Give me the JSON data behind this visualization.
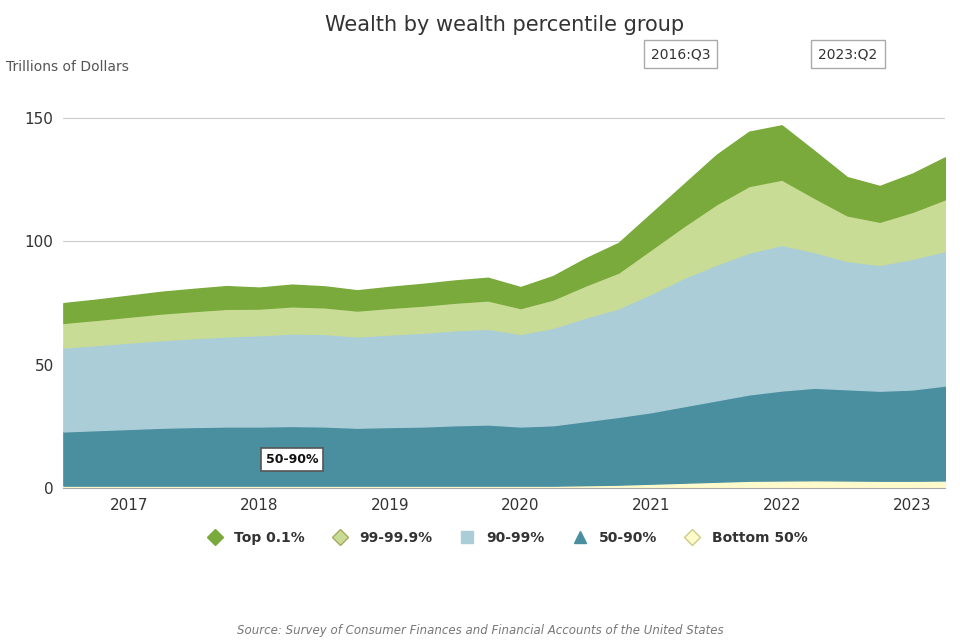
{
  "title": "Wealth by wealth percentile group",
  "ylabel": "Trillions of Dollars",
  "source": "Source: Survey of Consumer Finances and Financial Accounts of the United States",
  "annotation_box1": "2016:Q3",
  "annotation_box2": "2023:Q2",
  "label_annotation": "50-90%",
  "ylim": [
    0,
    160
  ],
  "yticks": [
    0,
    50,
    100,
    150
  ],
  "colors": {
    "top01": "#7aaa3c",
    "p9999": "#c8dc96",
    "p9099": "#aacdd8",
    "p5090": "#4a8fa0",
    "bot50": "#fffacc"
  },
  "x_numeric": [
    0,
    0.25,
    0.5,
    0.75,
    1.0,
    1.25,
    1.5,
    1.75,
    2.0,
    2.25,
    2.5,
    2.75,
    3.0,
    3.25,
    3.5,
    3.75,
    4.0,
    4.25,
    4.5,
    4.75,
    5.0,
    5.25,
    5.5,
    5.75,
    6.0,
    6.25,
    6.5,
    6.75
  ],
  "bot50": [
    1.0,
    1.0,
    1.0,
    1.0,
    1.0,
    1.0,
    1.0,
    1.0,
    1.0,
    1.0,
    1.0,
    1.0,
    1.0,
    1.0,
    1.0,
    1.0,
    1.2,
    1.4,
    1.8,
    2.2,
    2.6,
    3.0,
    3.1,
    3.2,
    3.1,
    3.0,
    3.0,
    3.1
  ],
  "p5090": [
    22.0,
    22.5,
    23.0,
    23.5,
    23.8,
    24.0,
    24.0,
    24.2,
    24.0,
    23.5,
    23.8,
    24.0,
    24.5,
    24.8,
    24.0,
    24.5,
    26.0,
    27.5,
    29.0,
    31.0,
    33.0,
    35.0,
    36.5,
    37.5,
    37.0,
    36.5,
    37.0,
    38.5
  ],
  "p9099": [
    34.0,
    34.5,
    35.0,
    35.5,
    36.0,
    36.5,
    37.0,
    37.5,
    37.5,
    37.0,
    37.5,
    38.0,
    38.5,
    38.8,
    37.5,
    39.5,
    42.0,
    44.0,
    48.0,
    52.0,
    55.0,
    57.5,
    59.0,
    55.0,
    52.0,
    51.0,
    53.0,
    54.5
  ],
  "p9999": [
    10.0,
    10.2,
    10.5,
    10.8,
    11.0,
    11.2,
    10.8,
    11.0,
    10.8,
    10.5,
    10.8,
    11.0,
    11.2,
    11.5,
    10.5,
    11.5,
    13.0,
    14.5,
    18.0,
    21.0,
    24.5,
    27.0,
    26.5,
    22.0,
    18.5,
    17.5,
    19.0,
    21.0
  ],
  "top01": [
    8.0,
    8.2,
    8.5,
    8.8,
    9.0,
    9.2,
    8.5,
    8.8,
    8.5,
    8.2,
    8.5,
    8.8,
    9.0,
    9.2,
    8.5,
    9.5,
    11.0,
    12.0,
    14.5,
    17.0,
    20.0,
    22.0,
    22.0,
    19.0,
    15.5,
    14.5,
    15.5,
    17.0
  ]
}
